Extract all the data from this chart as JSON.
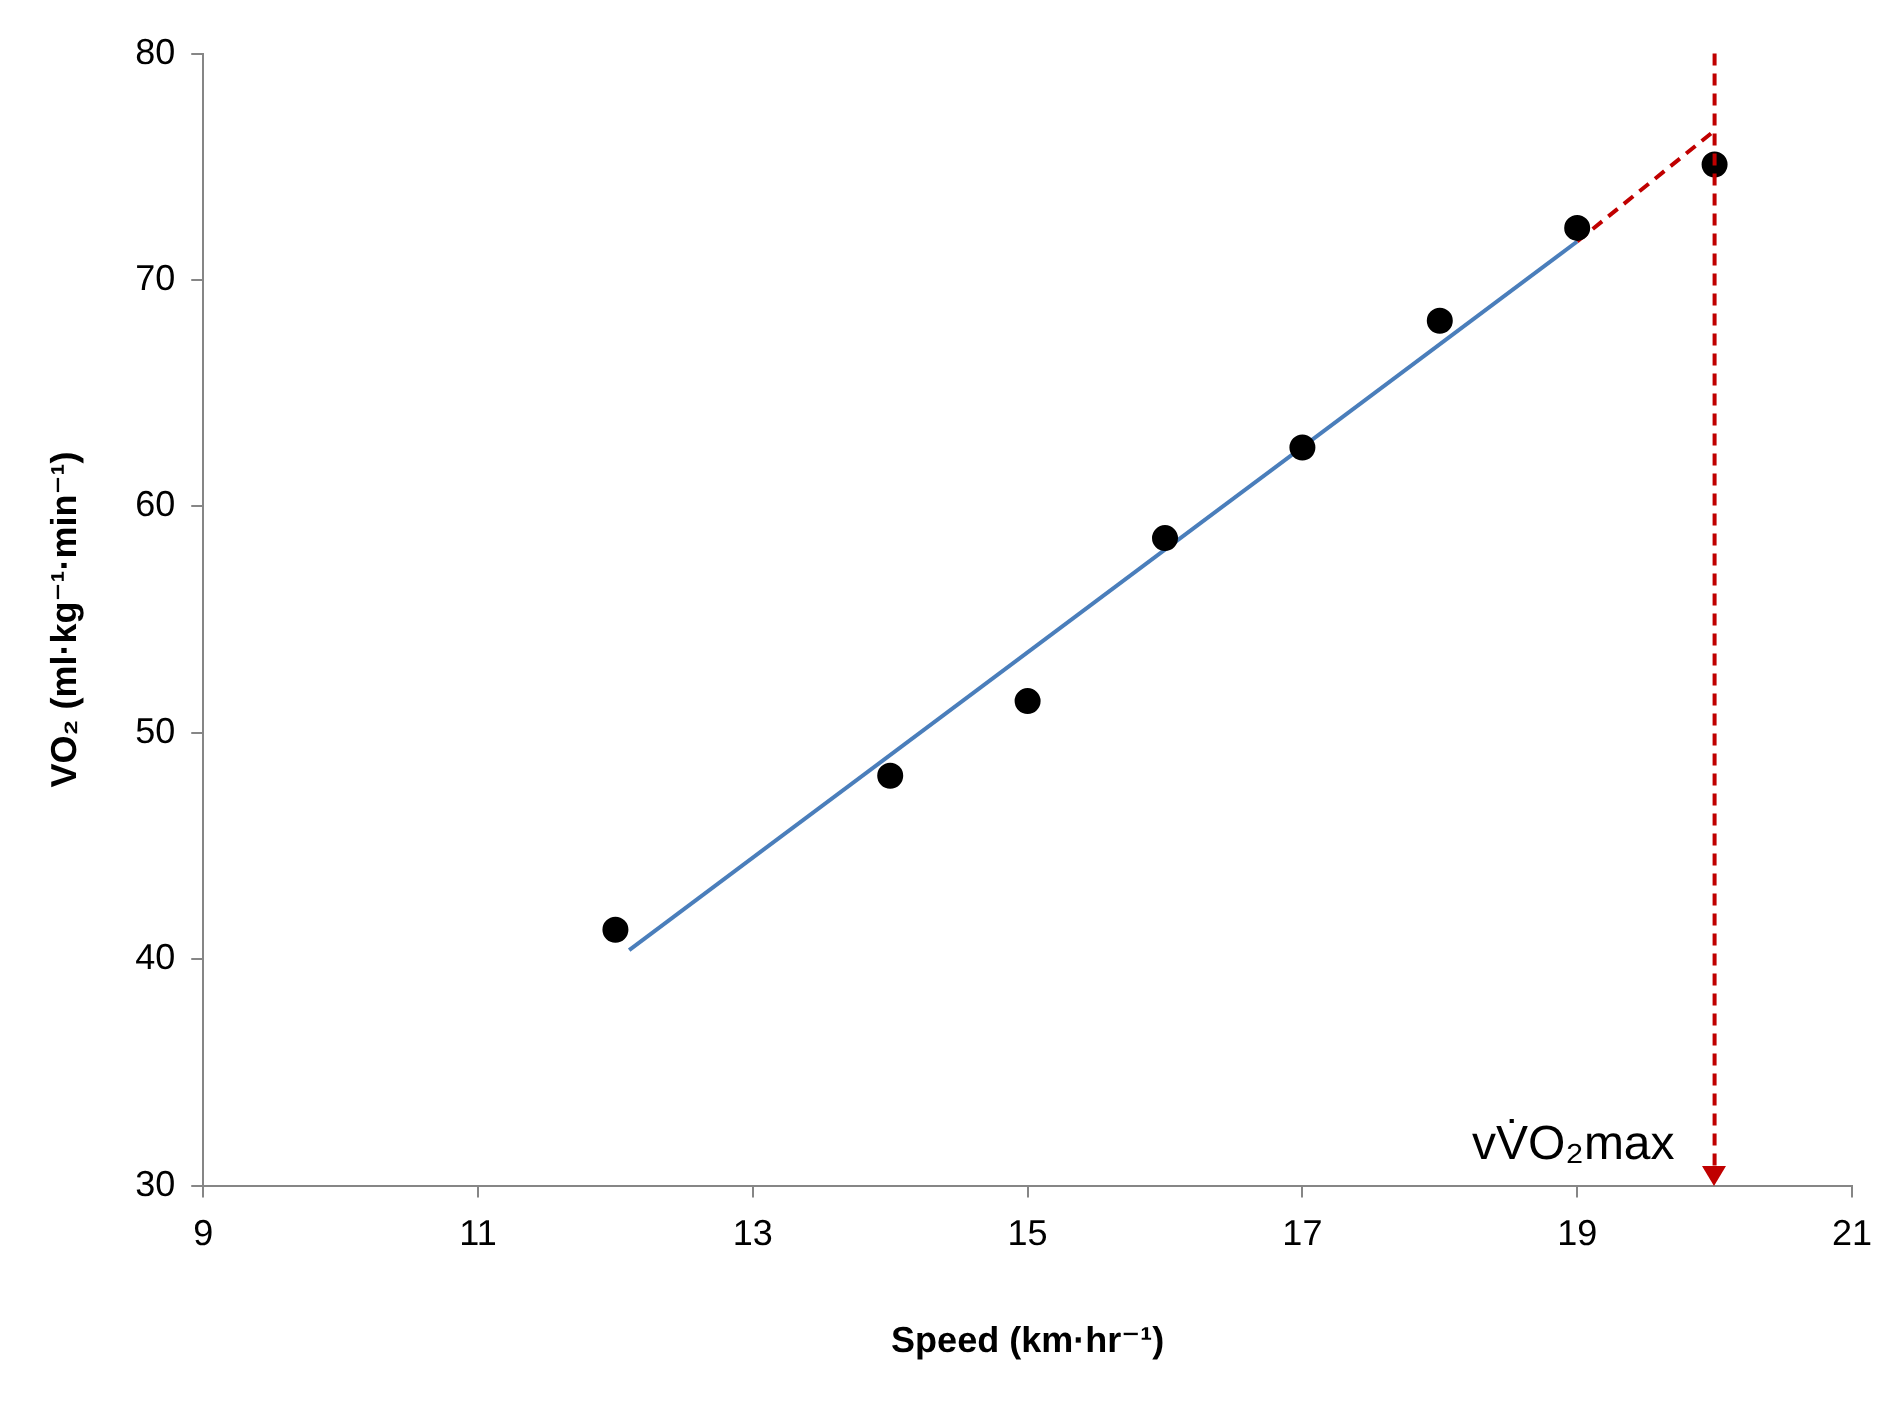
{
  "chart_data": {
    "type": "scatter",
    "xlabel": "Speed (km·hr⁻¹)",
    "ylabel": "VO₂ (ml·kg⁻¹·min⁻¹)",
    "xlim": [
      9,
      21
    ],
    "xticks": [
      9,
      11,
      13,
      15,
      17,
      19,
      21
    ],
    "ylim": [
      30,
      80
    ],
    "yticks": [
      30,
      40,
      50,
      60,
      70,
      80
    ],
    "grid": false,
    "legend": false,
    "marker": "circle",
    "series": [
      {
        "type": "scatter",
        "color": "#000000",
        "x": [
          12,
          14,
          15,
          16,
          17,
          18,
          19,
          20
        ],
        "values": [
          41.3,
          48.1,
          51.4,
          58.6,
          62.6,
          68.2,
          72.3,
          75.1
        ]
      },
      {
        "type": "line",
        "color": "#4a7ebb",
        "marker": "none",
        "line_style": "solid",
        "x": [
          12.1,
          19
        ],
        "values": [
          40.4,
          71.7
        ]
      },
      {
        "type": "line",
        "color": "#c00000",
        "marker": "none",
        "line_style": "dashed",
        "x": [
          19,
          20
        ],
        "values": [
          71.7,
          76.6
        ]
      }
    ],
    "ref_lines": [
      {
        "axis": "x",
        "value": 20,
        "label": "vV̇O₂max",
        "color": "#c00000",
        "line_style": "dashed"
      }
    ]
  }
}
